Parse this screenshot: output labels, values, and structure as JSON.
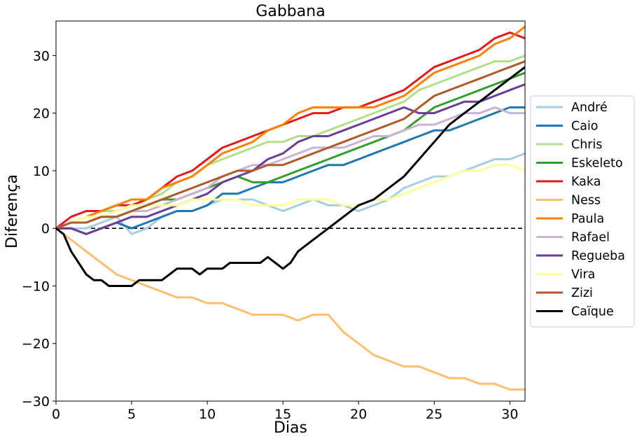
{
  "chart_data": {
    "type": "line",
    "title": "Gabbana",
    "xlabel": "Dias",
    "ylabel": "Diferença",
    "xlim": [
      0,
      31
    ],
    "ylim": [
      -30,
      36
    ],
    "xticks": [
      0,
      5,
      10,
      15,
      20,
      25,
      30
    ],
    "yticks": [
      -30,
      -20,
      -10,
      0,
      10,
      20,
      30
    ],
    "xtick_labels": [
      "0",
      "5",
      "10",
      "15",
      "20",
      "25",
      "30"
    ],
    "ytick_labels": [
      "−30",
      "−20",
      "−10",
      "0",
      "10",
      "20",
      "30"
    ],
    "grid": false,
    "legend_placement": "right, outside plot",
    "reference_line": {
      "y": 0,
      "style": "dashed",
      "color": "#000000"
    },
    "series": [
      {
        "name": "André",
        "color": "#a6cee3",
        "x": [
          0,
          1,
          2,
          3,
          4,
          5,
          6,
          7,
          8,
          9,
          10,
          11,
          12,
          13,
          14,
          15,
          16,
          17,
          18,
          19,
          20,
          21,
          22,
          23,
          24,
          25,
          26,
          27,
          28,
          29,
          30,
          31
        ],
        "y": [
          0,
          0,
          0,
          1,
          2,
          -1,
          0,
          2,
          3,
          3,
          4,
          5,
          5,
          5,
          4,
          3,
          4,
          5,
          4,
          4,
          3,
          4,
          5,
          7,
          8,
          9,
          9,
          10,
          11,
          12,
          12,
          13
        ]
      },
      {
        "name": "Caio",
        "color": "#1f78b4",
        "x": [
          0,
          1,
          2,
          3,
          4,
          5,
          6,
          7,
          8,
          9,
          10,
          11,
          12,
          13,
          14,
          15,
          16,
          17,
          18,
          19,
          20,
          21,
          22,
          23,
          24,
          25,
          26,
          27,
          28,
          29,
          30,
          31
        ],
        "y": [
          0,
          0,
          -1,
          0,
          1,
          0,
          1,
          2,
          3,
          3,
          4,
          6,
          6,
          7,
          8,
          8,
          9,
          10,
          11,
          11,
          12,
          13,
          14,
          15,
          16,
          17,
          17,
          18,
          19,
          20,
          21,
          21
        ]
      },
      {
        "name": "Chris",
        "color": "#b2df8a",
        "x": [
          0,
          1,
          2,
          3,
          4,
          5,
          6,
          7,
          8,
          9,
          10,
          11,
          12,
          13,
          14,
          15,
          16,
          17,
          18,
          19,
          20,
          21,
          22,
          23,
          24,
          25,
          26,
          27,
          28,
          29,
          30,
          31
        ],
        "y": [
          0,
          1,
          2,
          3,
          3,
          4,
          5,
          6,
          8,
          9,
          11,
          12,
          13,
          14,
          15,
          15,
          16,
          16,
          17,
          18,
          19,
          20,
          21,
          22,
          24,
          25,
          26,
          27,
          28,
          29,
          29,
          30
        ]
      },
      {
        "name": "Eskeleto",
        "color": "#33a02c",
        "x": [
          0,
          1,
          2,
          3,
          4,
          5,
          6,
          7,
          8,
          9,
          10,
          11,
          12,
          13,
          14,
          15,
          16,
          17,
          18,
          19,
          20,
          21,
          22,
          23,
          24,
          25,
          26,
          27,
          28,
          29,
          30,
          31
        ],
        "y": [
          0,
          1,
          1,
          2,
          2,
          3,
          4,
          5,
          5,
          6,
          7,
          8,
          9,
          8,
          8,
          9,
          10,
          11,
          12,
          13,
          14,
          15,
          16,
          17,
          19,
          21,
          22,
          23,
          24,
          25,
          26,
          27
        ]
      },
      {
        "name": "Kaka",
        "color": "#e31a1c",
        "x": [
          0,
          1,
          2,
          3,
          4,
          5,
          6,
          7,
          8,
          9,
          10,
          11,
          12,
          13,
          14,
          15,
          16,
          17,
          18,
          19,
          20,
          21,
          22,
          23,
          24,
          25,
          26,
          27,
          28,
          29,
          30,
          31
        ],
        "y": [
          0,
          2,
          3,
          3,
          4,
          4,
          5,
          7,
          9,
          10,
          12,
          14,
          15,
          16,
          17,
          18,
          19,
          20,
          20,
          21,
          21,
          22,
          23,
          24,
          26,
          28,
          29,
          30,
          31,
          33,
          34,
          33
        ]
      },
      {
        "name": "Ness",
        "color": "#fdbf6f",
        "x": [
          0,
          1,
          2,
          3,
          4,
          5,
          6,
          7,
          8,
          9,
          10,
          11,
          12,
          13,
          14,
          15,
          16,
          17,
          18,
          19,
          20,
          21,
          22,
          23,
          24,
          25,
          26,
          27,
          28,
          29,
          30,
          31
        ],
        "y": [
          0,
          -2,
          -4,
          -6,
          -8,
          -9,
          -10,
          -11,
          -12,
          -12,
          -13,
          -13,
          -14,
          -15,
          -15,
          -15,
          -16,
          -15,
          -15,
          -18,
          -20,
          -22,
          -23,
          -24,
          -24,
          -25,
          -26,
          -26,
          -27,
          -27,
          -28,
          -28
        ]
      },
      {
        "name": "Paula",
        "color": "#ff7f00",
        "x": [
          0,
          1,
          2,
          3,
          4,
          5,
          6,
          7,
          8,
          9,
          10,
          11,
          12,
          13,
          14,
          15,
          16,
          17,
          18,
          19,
          20,
          21,
          22,
          23,
          24,
          25,
          26,
          27,
          28,
          29,
          30,
          31
        ],
        "y": [
          0,
          1,
          2,
          3,
          4,
          5,
          5,
          7,
          8,
          9,
          11,
          13,
          14,
          15,
          17,
          18,
          20,
          21,
          21,
          21,
          21,
          21,
          22,
          23,
          25,
          27,
          28,
          29,
          30,
          32,
          33,
          35
        ]
      },
      {
        "name": "Rafael",
        "color": "#cab2d6",
        "x": [
          0,
          1,
          2,
          3,
          4,
          5,
          6,
          7,
          8,
          9,
          10,
          11,
          12,
          13,
          14,
          15,
          16,
          17,
          18,
          19,
          20,
          21,
          22,
          23,
          24,
          25,
          26,
          27,
          28,
          29,
          30,
          31
        ],
        "y": [
          0,
          1,
          1,
          2,
          2,
          3,
          3,
          4,
          5,
          6,
          7,
          9,
          10,
          11,
          11,
          12,
          13,
          14,
          14,
          14,
          15,
          16,
          16,
          17,
          18,
          18,
          19,
          20,
          20,
          21,
          20,
          20
        ]
      },
      {
        "name": "Regueba",
        "color": "#6a3d9a",
        "x": [
          0,
          1,
          2,
          3,
          4,
          5,
          6,
          7,
          8,
          9,
          10,
          11,
          12,
          13,
          14,
          15,
          16,
          17,
          18,
          19,
          20,
          21,
          22,
          23,
          24,
          25,
          26,
          27,
          28,
          29,
          30,
          31
        ],
        "y": [
          0,
          0,
          -1,
          0,
          1,
          2,
          2,
          3,
          4,
          5,
          6,
          8,
          9,
          10,
          12,
          13,
          15,
          16,
          16,
          17,
          18,
          19,
          20,
          21,
          20,
          20,
          21,
          22,
          22,
          23,
          24,
          25
        ]
      },
      {
        "name": "Vira",
        "color": "#ffff99",
        "x": [
          0,
          1,
          2,
          3,
          4,
          5,
          6,
          7,
          8,
          9,
          10,
          11,
          12,
          13,
          14,
          15,
          16,
          17,
          18,
          19,
          20,
          21,
          22,
          23,
          24,
          25,
          26,
          27,
          28,
          29,
          30,
          31
        ],
        "y": [
          0,
          1,
          2,
          2,
          3,
          4,
          4,
          4,
          4,
          5,
          5,
          5,
          5,
          4,
          4,
          4,
          5,
          5,
          5,
          4,
          4,
          5,
          5,
          6,
          7,
          8,
          9,
          10,
          10,
          11,
          11,
          10
        ]
      },
      {
        "name": "Zizi",
        "color": "#b15928",
        "x": [
          0,
          1,
          2,
          3,
          4,
          5,
          6,
          7,
          8,
          9,
          10,
          11,
          12,
          13,
          14,
          15,
          16,
          17,
          18,
          19,
          20,
          21,
          22,
          23,
          24,
          25,
          26,
          27,
          28,
          29,
          30,
          31
        ],
        "y": [
          0,
          1,
          1,
          2,
          2,
          3,
          4,
          5,
          6,
          7,
          8,
          9,
          10,
          10,
          11,
          11,
          12,
          13,
          14,
          15,
          16,
          17,
          18,
          19,
          21,
          23,
          24,
          25,
          26,
          27,
          28,
          29
        ]
      },
      {
        "name": "Caïque",
        "color": "#000000",
        "x": [
          0,
          0.5,
          1,
          1.5,
          2,
          2.5,
          3,
          3.5,
          4,
          4.5,
          5,
          5.5,
          6,
          6.5,
          7,
          7.5,
          8,
          8.5,
          9,
          9.5,
          10,
          10.5,
          11,
          11.5,
          12,
          12.5,
          13,
          13.5,
          14,
          14.5,
          15,
          15.5,
          16,
          17,
          18,
          19,
          20,
          21,
          22,
          23,
          24,
          25,
          26,
          27,
          28,
          29,
          30,
          31
        ],
        "y": [
          0,
          -1,
          -4,
          -6,
          -8,
          -9,
          -9,
          -10,
          -10,
          -10,
          -10,
          -9,
          -9,
          -9,
          -9,
          -8,
          -7,
          -7,
          -7,
          -8,
          -7,
          -7,
          -7,
          -6,
          -6,
          -6,
          -6,
          -6,
          -5,
          -6,
          -7,
          -6,
          -4,
          -2,
          0,
          2,
          4,
          5,
          7,
          9,
          12,
          15,
          18,
          20,
          22,
          24,
          26,
          28
        ]
      }
    ]
  }
}
